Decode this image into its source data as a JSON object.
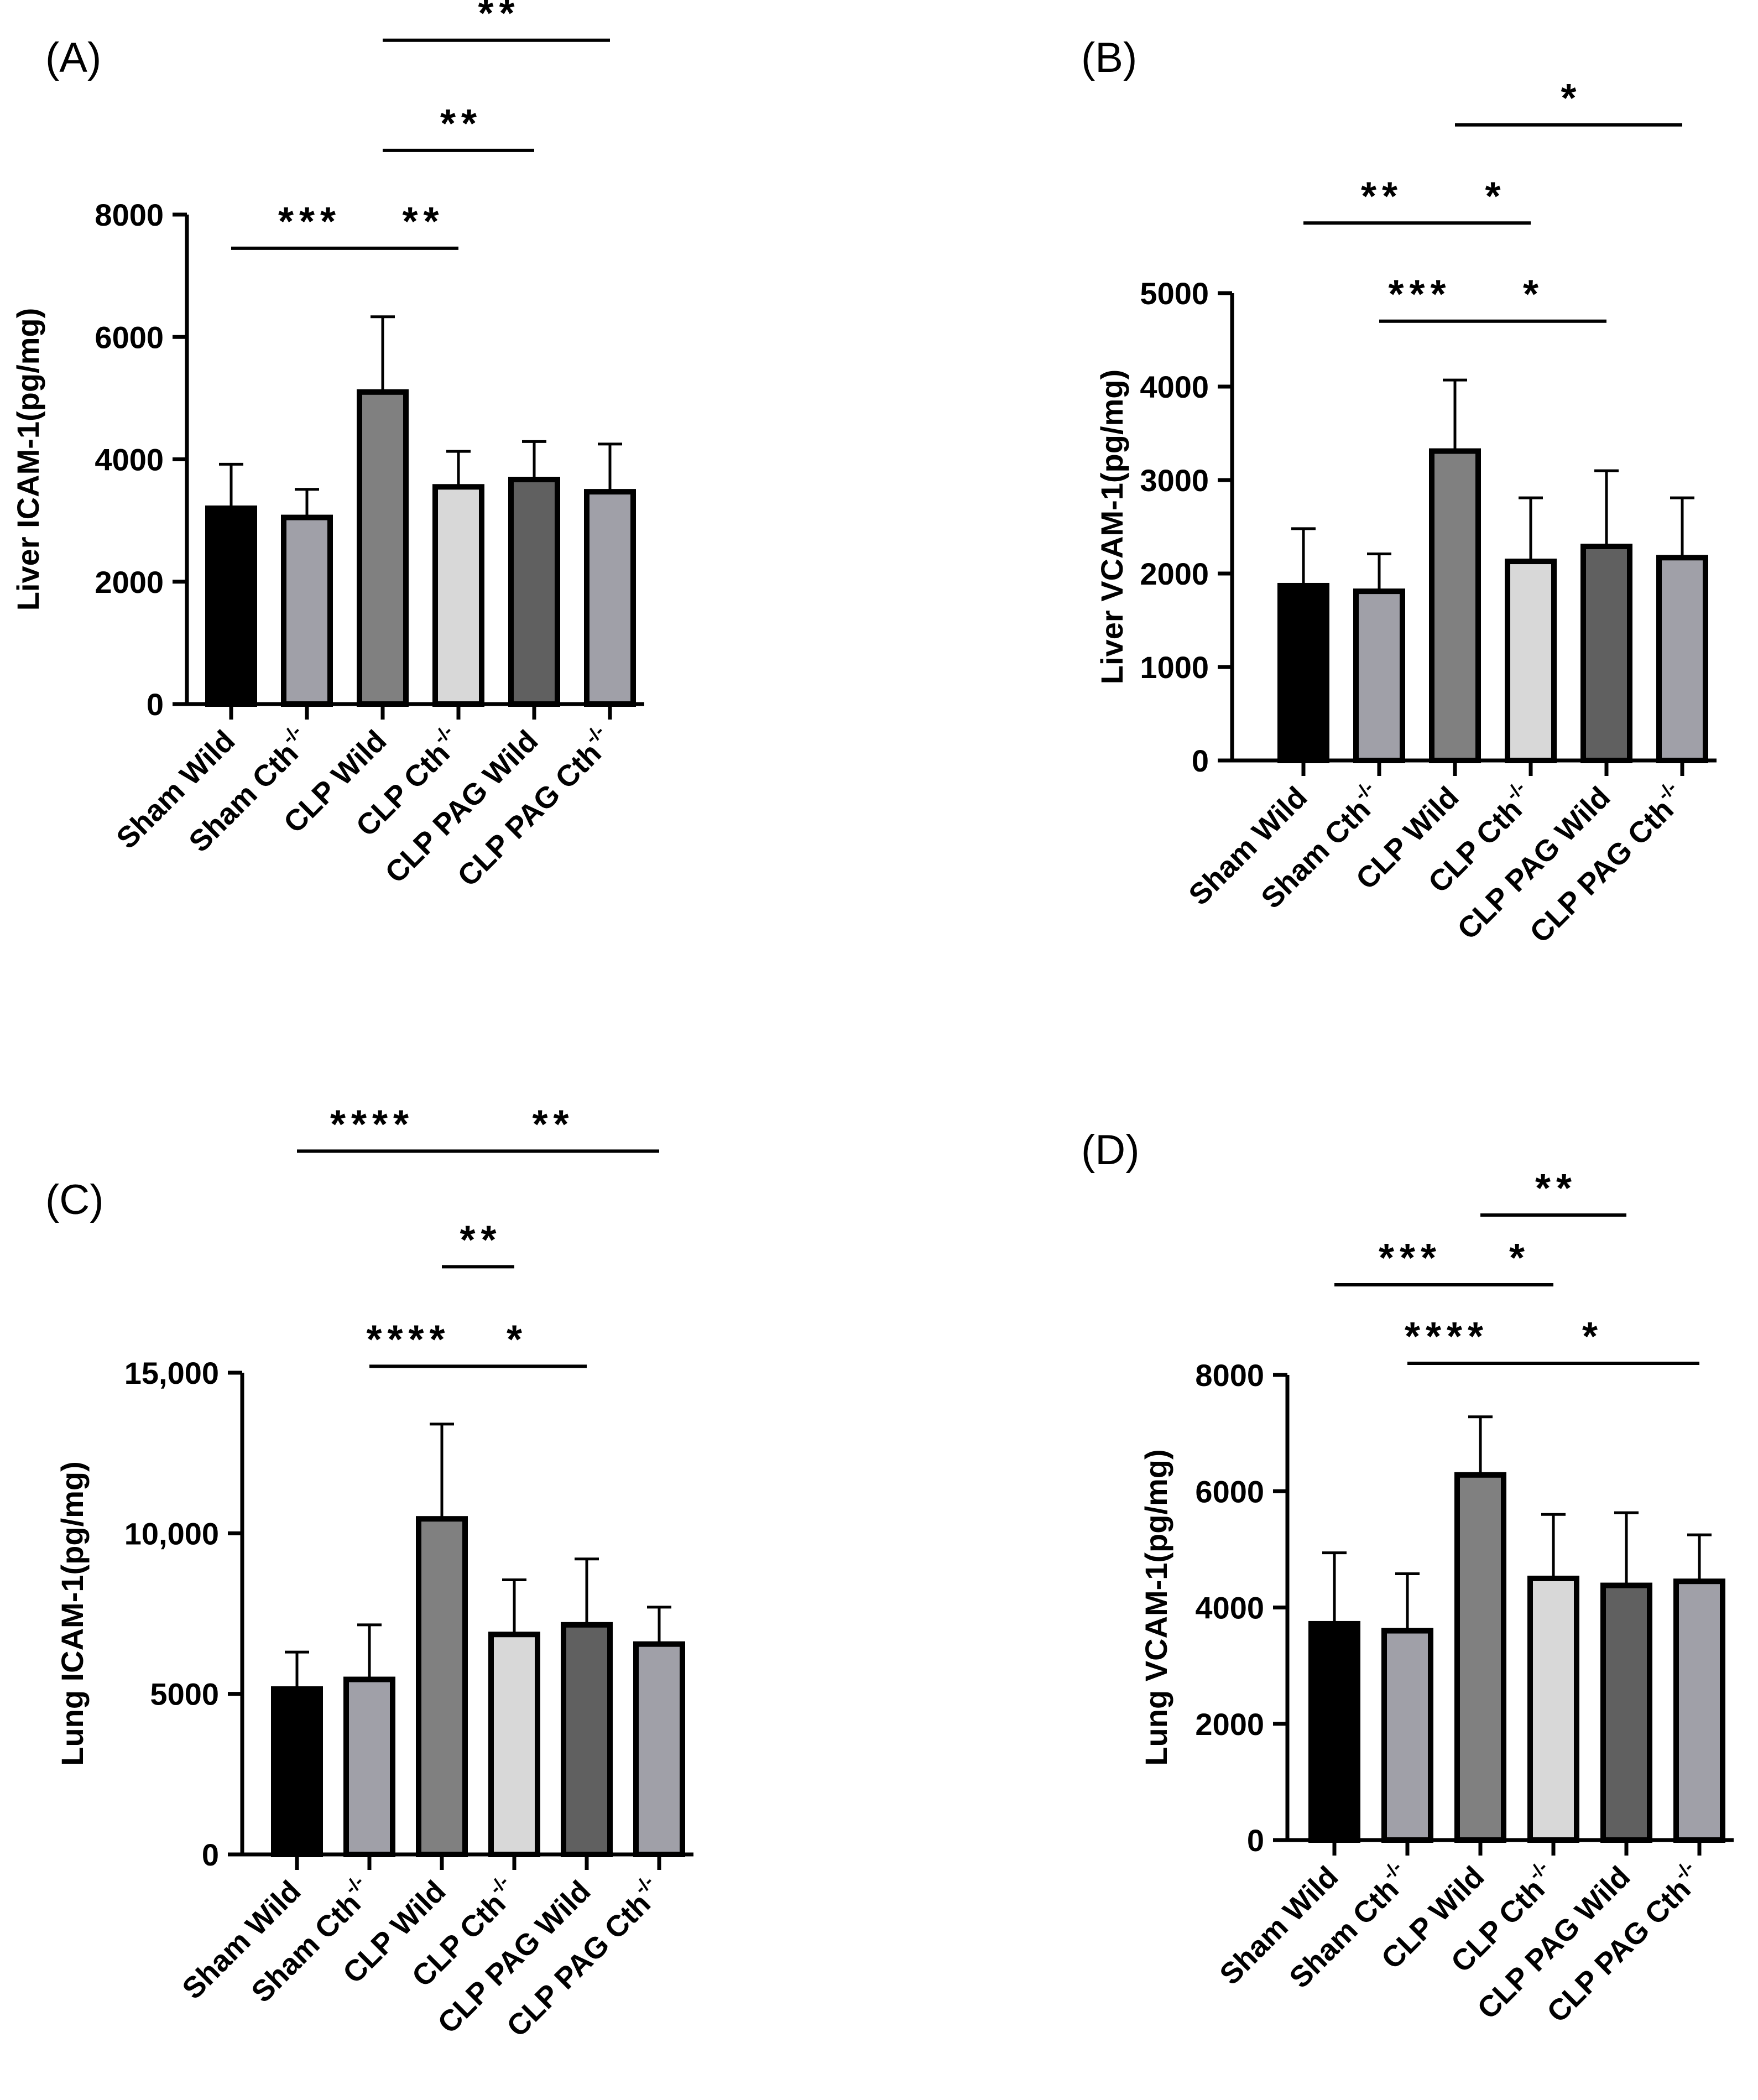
{
  "figure": {
    "panel_labels": [
      "(A)",
      "(B)",
      "(C)",
      "(D)"
    ],
    "categories": [
      {
        "main": "Sham Wild",
        "sup": ""
      },
      {
        "main": "Sham Cth",
        "sup": "-/-"
      },
      {
        "main": "CLP Wild",
        "sup": ""
      },
      {
        "main": "CLP Cth",
        "sup": "-/-"
      },
      {
        "main": "CLP PAG Wild",
        "sup": ""
      },
      {
        "main": "CLP PAG Cth",
        "sup": "-/-"
      }
    ],
    "colors": {
      "bars": [
        "#000000",
        "#a0a0a8",
        "#808080",
        "#d8d8d8",
        "#606060",
        "#a0a0a8"
      ],
      "axis": "#000000"
    }
  },
  "chart_data": [
    {
      "panel": "(A)",
      "type": "bar",
      "title": "",
      "xlabel": "",
      "ylabel": "Liver ICAM-1(pg/mg)",
      "ylim": [
        0,
        8000
      ],
      "yticks": [
        0,
        2000,
        4000,
        6000,
        8000
      ],
      "ytick_labels": [
        "0",
        "2000",
        "4000",
        "6000",
        "8000"
      ],
      "categories": [
        "Sham Wild",
        "Sham Cth-/-",
        "CLP Wild",
        "CLP Cth-/-",
        "CLP PAG Wild",
        "CLP PAG Cth-/-"
      ],
      "values": [
        3200,
        3050,
        5100,
        3550,
        3670,
        3470
      ],
      "errors": [
        720,
        460,
        1230,
        580,
        620,
        780
      ],
      "significance": [
        {
          "from": 0,
          "to": 2,
          "label": "***",
          "level": 7450
        },
        {
          "from": 2,
          "to": 3,
          "label": "**",
          "level": 7450
        },
        {
          "from": 2,
          "to": 4,
          "label": "**",
          "level": 9050
        },
        {
          "from": 2,
          "to": 5,
          "label": "**",
          "level": 10850
        }
      ]
    },
    {
      "panel": "(B)",
      "type": "bar",
      "title": "",
      "xlabel": "",
      "ylabel": "Liver VCAM-1(pg/mg)",
      "ylim": [
        0,
        5000
      ],
      "yticks": [
        0,
        1000,
        2000,
        3000,
        4000,
        5000
      ],
      "ytick_labels": [
        "0",
        "1000",
        "2000",
        "3000",
        "4000",
        "5000"
      ],
      "categories": [
        "Sham Wild",
        "Sham Cth-/-",
        "CLP Wild",
        "CLP Cth-/-",
        "CLP PAG Wild",
        "CLP PAG Cth-/-"
      ],
      "values": [
        1870,
        1810,
        3310,
        2130,
        2290,
        2170
      ],
      "errors": [
        610,
        400,
        760,
        680,
        810,
        640
      ],
      "significance": [
        {
          "from": 1,
          "to": 2,
          "label": "***",
          "level": 4700
        },
        {
          "from": 2,
          "to": 4,
          "label": "*",
          "level": 4700
        },
        {
          "from": 0,
          "to": 2,
          "label": "**",
          "level": 5750
        },
        {
          "from": 2,
          "to": 3,
          "label": "*",
          "level": 5750
        },
        {
          "from": 2,
          "to": 5,
          "label": "*",
          "level": 6800
        }
      ]
    },
    {
      "panel": "(C)",
      "type": "bar",
      "title": "",
      "xlabel": "",
      "ylabel": "Lung ICAM-1(pg/mg)",
      "ylim": [
        0,
        15000
      ],
      "yticks": [
        0,
        5000,
        10000,
        15000
      ],
      "ytick_labels": [
        "0",
        "5000",
        "10,000",
        "15,000"
      ],
      "categories": [
        "Sham Wild",
        "Sham Cth-/-",
        "CLP Wild",
        "CLP Cth-/-",
        "CLP PAG Wild",
        "CLP PAG Cth-/-"
      ],
      "values": [
        5150,
        5450,
        10450,
        6850,
        7150,
        6550
      ],
      "errors": [
        1150,
        1700,
        2950,
        1700,
        2050,
        1150
      ],
      "significance": [
        {
          "from": 1,
          "to": 2,
          "label": "****",
          "level": 15200
        },
        {
          "from": 2,
          "to": 4,
          "label": "*",
          "level": 15200
        },
        {
          "from": 2,
          "to": 3,
          "label": "**",
          "level": 18300
        },
        {
          "from": 0,
          "to": 2,
          "label": "****",
          "level": 21900
        },
        {
          "from": 2,
          "to": 5,
          "label": "**",
          "level": 21900
        }
      ]
    },
    {
      "panel": "(D)",
      "type": "bar",
      "title": "",
      "xlabel": "",
      "ylabel": "Lung VCAM-1(pg/mg)",
      "ylim": [
        0,
        8000
      ],
      "yticks": [
        0,
        2000,
        4000,
        6000,
        8000
      ],
      "ytick_labels": [
        "0",
        "2000",
        "4000",
        "6000",
        "8000"
      ],
      "categories": [
        "Sham Wild",
        "Sham Cth-/-",
        "CLP Wild",
        "CLP Cth-/-",
        "CLP PAG Wild",
        "CLP PAG Cth-/-"
      ],
      "values": [
        3720,
        3600,
        6280,
        4500,
        4380,
        4450
      ],
      "errors": [
        1220,
        980,
        1000,
        1100,
        1250,
        800
      ],
      "significance": [
        {
          "from": 1,
          "to": 2,
          "label": "****",
          "level": 8200
        },
        {
          "from": 2,
          "to": 5,
          "label": "*",
          "level": 8200
        },
        {
          "from": 0,
          "to": 2,
          "label": "***",
          "level": 9550
        },
        {
          "from": 2,
          "to": 3,
          "label": "*",
          "level": 9550
        },
        {
          "from": 2,
          "to": 4,
          "label": "**",
          "level": 10750
        }
      ]
    }
  ]
}
